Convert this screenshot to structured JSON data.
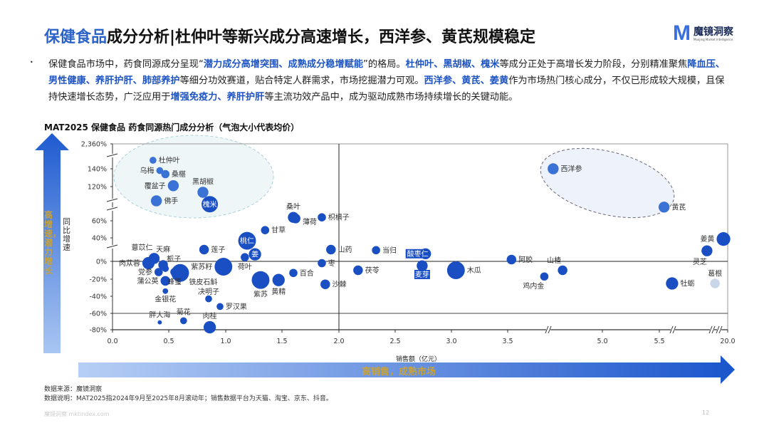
{
  "header": {
    "title_highlight": "保健食品",
    "title_rest": "成分分析|杜仲叶等新兴成分高速增长，西洋参、黄芪规模稳定",
    "logo_mark": "M",
    "logo_name": "魔镜洞察",
    "logo_sub": "Moojing Market Intelligence"
  },
  "summary": {
    "bullet": "•",
    "segments": [
      {
        "text": "保健食品市场中，药食同源成分呈现“",
        "highlight": false
      },
      {
        "text": "潜力成分高增突围、成熟成分稳增赋能",
        "highlight": true
      },
      {
        "text": "”的格局。",
        "highlight": false
      },
      {
        "text": "杜仲叶、黑胡椒、槐米",
        "highlight": true
      },
      {
        "text": "等成分正处于高增长发力阶段，分别精准聚焦",
        "highlight": false
      },
      {
        "text": "降血压、男性健康、养肝护肝、肺部养护",
        "highlight": true
      },
      {
        "text": "等细分功效赛道，贴合特定人群需求，市场挖掘潜力可观。",
        "highlight": false
      },
      {
        "text": "西洋参、黄芪、姜黄",
        "highlight": true
      },
      {
        "text": "作为市场热门核心成分，不仅已形成较大规模，且保持快速增长态势，广泛应用于",
        "highlight": false
      },
      {
        "text": "增强免疫力、养肝护肝",
        "highlight": true
      },
      {
        "text": "等主流功效产品中，成为驱动成熟市场持续增长的关键动能。",
        "highlight": false
      }
    ]
  },
  "chart_data": {
    "type": "scatter",
    "title": "MAT2025 保健食品 药食同源热门成分分析（气泡大小代表均价）",
    "xlabel": "销售额（亿元）",
    "ylabel": "同比增速",
    "x_ticks": [
      "0.0",
      "0.5",
      "1.0",
      "1.5",
      "2.0",
      "2.5",
      "3.0",
      "3.5",
      "5.0",
      "5.5",
      "20.0"
    ],
    "y_ticks": [
      "2,360%",
      "140%",
      "120%",
      "60%",
      "40%",
      "0%",
      "-20%",
      "-40%",
      "-60%",
      "-80%"
    ],
    "x_axis_breaks": true,
    "y_axis_breaks": true,
    "reference_lines": {
      "x": 2.0,
      "y": [
        0,
        -60
      ]
    },
    "y_arrow_text": "高增速，潜力增长",
    "x_arrow_text": "高销售，成熟市场",
    "colors": {
      "bubble": "#1a4fc4",
      "bubble_light": "#3a72d6",
      "bubble_faded": "#c9d5e8",
      "accent_text": "#c9a23a",
      "title_blue": "#2b63c9"
    },
    "points": [
      {
        "name": "杜仲叶",
        "x": 0.36,
        "y": 900,
        "size": 3,
        "label_pos": "right",
        "tone": "light"
      },
      {
        "name": "乌梅",
        "x": 0.42,
        "y": 138,
        "size": 3,
        "label_pos": "left",
        "tone": "light"
      },
      {
        "name": "桑椹",
        "x": 0.47,
        "y": 134,
        "size": 4,
        "label_pos": "right",
        "tone": "light"
      },
      {
        "name": "覆盆子",
        "x": 0.54,
        "y": 121,
        "size": 6,
        "label_pos": "left",
        "tone": "light"
      },
      {
        "name": "黑胡椒",
        "x": 0.8,
        "y": 110,
        "size": 6,
        "label_pos": "above",
        "tone": "light"
      },
      {
        "name": "佛手",
        "x": 0.39,
        "y": 95,
        "size": 6,
        "label_pos": "right",
        "tone": "light"
      },
      {
        "name": "槐米",
        "x": 0.86,
        "y": 89,
        "size": 10,
        "label_pos": "inside",
        "tone": "dark"
      },
      {
        "name": "桑叶",
        "x": 1.6,
        "y": 66,
        "size": 6,
        "label_pos": "above",
        "tone": "dark"
      },
      {
        "name": "薄荷",
        "x": 1.62,
        "y": 64,
        "size": 5,
        "label_pos": "right-low",
        "tone": "dark"
      },
      {
        "name": "枳椇子",
        "x": 1.85,
        "y": 66,
        "size": 4,
        "label_pos": "right",
        "tone": "dark"
      },
      {
        "name": "甘草",
        "x": 1.35,
        "y": 49,
        "size": 4,
        "label_pos": "right",
        "tone": "dark"
      },
      {
        "name": "桃仁",
        "x": 1.19,
        "y": 35,
        "size": 11,
        "label_pos": "inside",
        "tone": "dark"
      },
      {
        "name": "姜",
        "x": 1.26,
        "y": 12,
        "size": 7,
        "label_pos": "inside",
        "tone": "dark"
      },
      {
        "name": "荷叶",
        "x": 1.17,
        "y": 7,
        "size": 4,
        "label_pos": "below",
        "tone": "dark"
      },
      {
        "name": "莲子",
        "x": 0.81,
        "y": 20,
        "size": 5,
        "label_pos": "right",
        "tone": "dark"
      },
      {
        "name": "薏苡仁",
        "x": 0.37,
        "y": 5,
        "size": 6,
        "label_pos": "above-left",
        "tone": "dark"
      },
      {
        "name": "肉苁蓉",
        "x": 0.32,
        "y": -2,
        "size": 7,
        "label_pos": "left",
        "tone": "dark"
      },
      {
        "name": "天麻",
        "x": 0.45,
        "y": -4,
        "size": 5,
        "label_pos": "above",
        "tone": "dark"
      },
      {
        "name": "栀子",
        "x": 0.47,
        "y": -8,
        "size": 3,
        "label_pos": "above-right",
        "tone": "dark"
      },
      {
        "name": "党参",
        "x": 0.41,
        "y": -12,
        "size": 4,
        "label_pos": "left",
        "tone": "dark"
      },
      {
        "name": "蒲公英",
        "x": 0.47,
        "y": -22,
        "size": 5,
        "label_pos": "left",
        "tone": "dark"
      },
      {
        "name": "铁皮石斛",
        "x": 0.6,
        "y": -13,
        "size": 11,
        "label_pos": "below-right",
        "tone": "dark"
      },
      {
        "name": "蜂蜜",
        "x": 0.55,
        "y": -12,
        "size": 4,
        "label_pos": "below",
        "tone": "dark"
      },
      {
        "name": "金银花",
        "x": 0.47,
        "y": -34,
        "size": 2,
        "label_pos": "below",
        "tone": "dark"
      },
      {
        "name": "紫苏籽",
        "x": 0.98,
        "y": -6,
        "size": 11,
        "label_pos": "left",
        "tone": "dark"
      },
      {
        "name": "决明子",
        "x": 0.85,
        "y": -43,
        "size": 3,
        "label_pos": "above",
        "tone": "dark"
      },
      {
        "name": "罗汉果",
        "x": 0.95,
        "y": -52,
        "size": 3,
        "label_pos": "right",
        "tone": "dark"
      },
      {
        "name": "胖大海",
        "x": 0.42,
        "y": -71,
        "size": 1,
        "label_pos": "above",
        "tone": "dark"
      },
      {
        "name": "菊花",
        "x": 0.63,
        "y": -69,
        "size": 3,
        "label_pos": "above",
        "tone": "dark"
      },
      {
        "name": "肉桂",
        "x": 0.86,
        "y": -77,
        "size": 7,
        "label_pos": "above",
        "tone": "dark"
      },
      {
        "name": "紫苏",
        "x": 1.31,
        "y": -21,
        "size": 11,
        "label_pos": "below",
        "tone": "dark"
      },
      {
        "name": "黄精",
        "x": 1.47,
        "y": -21,
        "size": 7,
        "label_pos": "below",
        "tone": "dark"
      },
      {
        "name": "百合",
        "x": 1.6,
        "y": -13,
        "size": 4,
        "label_pos": "right",
        "tone": "dark"
      },
      {
        "name": "山药",
        "x": 1.93,
        "y": 20,
        "size": 5,
        "label_pos": "right",
        "tone": "dark"
      },
      {
        "name": "枣",
        "x": 1.85,
        "y": -2,
        "size": 4,
        "label_pos": "right",
        "tone": "dark"
      },
      {
        "name": "沙棘",
        "x": 1.88,
        "y": -26,
        "size": 5,
        "label_pos": "right",
        "tone": "dark"
      },
      {
        "name": "当归",
        "x": 2.33,
        "y": 19,
        "size": 4,
        "label_pos": "right",
        "tone": "dark"
      },
      {
        "name": "茯苓",
        "x": 2.17,
        "y": -10,
        "size": 5,
        "label_pos": "right",
        "tone": "dark"
      },
      {
        "name": "酸枣仁",
        "x": 2.77,
        "y": 13,
        "size": 6,
        "label_pos": "boxed-left",
        "tone": "dark"
      },
      {
        "name": "麦芽",
        "x": 2.74,
        "y": -5,
        "size": 6,
        "label_pos": "boxed-below",
        "tone": "dark"
      },
      {
        "name": "木瓜",
        "x": 3.04,
        "y": -10,
        "size": 11,
        "label_pos": "right",
        "tone": "dark"
      },
      {
        "name": "阿胶",
        "x": 3.56,
        "y": 3,
        "size": 5,
        "label_pos": "right",
        "tone": "dark"
      },
      {
        "name": "鸡内金",
        "x": 4.08,
        "y": -17,
        "size": 4,
        "label_pos": "below-left",
        "tone": "dark"
      },
      {
        "name": "山楂",
        "x": 4.37,
        "y": -10,
        "size": 5,
        "label_pos": "above-left",
        "tone": "dark"
      },
      {
        "name": "西洋参",
        "x": 4.22,
        "y": 140,
        "size": 6,
        "label_pos": "right",
        "tone": "light"
      },
      {
        "name": "黄芪",
        "x": 6.5,
        "y": 84,
        "size": 6,
        "label_pos": "right",
        "tone": "light"
      },
      {
        "name": "牡蛎",
        "x": 8.2,
        "y": -25,
        "size": 7,
        "label_pos": "right",
        "tone": "dark"
      },
      {
        "name": "灵芝",
        "x": 15.6,
        "y": 18,
        "size": 6,
        "label_pos": "below-left",
        "tone": "dark"
      },
      {
        "name": "葛根",
        "x": 17.3,
        "y": -25,
        "size": 5,
        "label_pos": "above",
        "tone": "faded"
      },
      {
        "name": "姜黄",
        "x": 19.1,
        "y": 38,
        "size": 8,
        "label_pos": "left",
        "tone": "dark"
      }
    ]
  },
  "footer": {
    "source": "数据来源：魔镜洞察",
    "note": "数据说明：MAT2025指2024年9月至2025年8月滚动年；销售数据平台为天猫、淘宝、京东、抖音。",
    "watermark": "魔镜洞察  mktindex.com",
    "page_number": "12"
  }
}
